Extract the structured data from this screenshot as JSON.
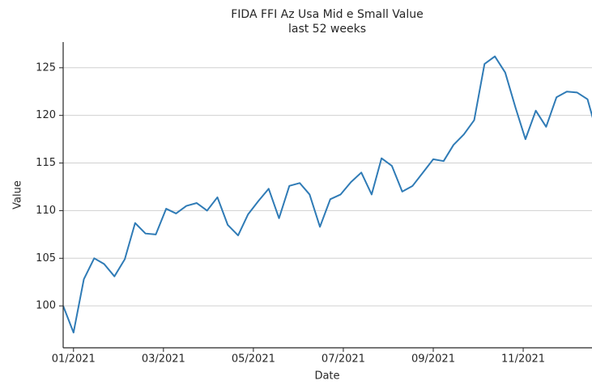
{
  "chart_data": {
    "type": "line",
    "title": "FIDA FFI Az Usa Mid e Small Value",
    "subtitle": "last 52 weeks",
    "x_label": "Date",
    "y_label": "Value",
    "x": [
      0.77,
      1.0,
      1.23,
      1.46,
      1.68,
      1.91,
      2.14,
      2.37,
      2.6,
      2.83,
      3.06,
      3.28,
      3.51,
      3.74,
      3.97,
      4.2,
      4.43,
      4.66,
      4.88,
      5.11,
      5.34,
      5.57,
      5.8,
      6.03,
      6.25,
      6.48,
      6.71,
      6.94,
      7.17,
      7.4,
      7.63,
      7.85,
      8.08,
      8.31,
      8.54,
      8.77,
      9.0,
      9.23,
      9.45,
      9.68,
      9.91,
      10.14,
      10.37,
      10.6,
      10.83,
      11.05,
      11.28,
      11.51,
      11.74,
      11.97,
      12.2,
      12.43,
      12.65
    ],
    "series": [
      {
        "name": "Value",
        "color": "#2f7bb6",
        "values": [
          100.0,
          97.2,
          102.8,
          105.0,
          104.4,
          103.1,
          104.9,
          108.7,
          107.6,
          107.5,
          110.2,
          109.7,
          110.5,
          110.8,
          110.0,
          111.4,
          108.5,
          107.4,
          109.6,
          111.0,
          112.3,
          109.2,
          112.6,
          112.9,
          111.7,
          108.3,
          111.2,
          111.7,
          113.0,
          114.0,
          111.7,
          115.5,
          114.7,
          112.0,
          112.6,
          114.0,
          115.4,
          115.2,
          116.9,
          118.0,
          119.5,
          125.4,
          126.2,
          124.5,
          120.8,
          117.5,
          120.5,
          118.8,
          121.9,
          122.5,
          122.4,
          121.7,
          118.0
        ]
      }
    ],
    "xlim": [
      0.77,
      12.53
    ],
    "xticks": [
      {
        "value": 1,
        "label": "01/2021"
      },
      {
        "value": 3,
        "label": "03/2021"
      },
      {
        "value": 5,
        "label": "05/2021"
      },
      {
        "value": 7,
        "label": "07/2021"
      },
      {
        "value": 9,
        "label": "09/2021"
      },
      {
        "value": 11,
        "label": "11/2021"
      }
    ],
    "ylim": [
      95.6,
      127.7
    ],
    "yticks": [
      100,
      105,
      110,
      115,
      120,
      125
    ],
    "grid": true
  }
}
